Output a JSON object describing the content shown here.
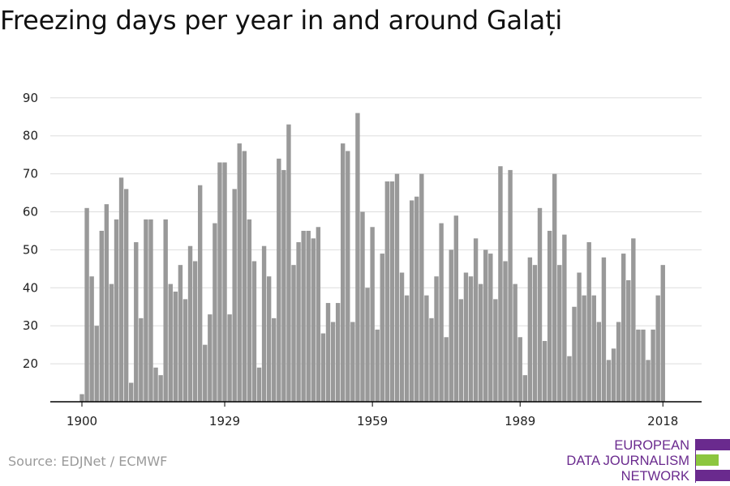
{
  "title": "Freezing days per year in and around Galați",
  "source": "Source: EDJNet / ECMWF",
  "logo": {
    "lines": [
      "EUROPEAN",
      "DATA JOURNALISM",
      "NETWORK"
    ],
    "bar_colors": [
      "#6a2a8e",
      "#8cc63f",
      "#6a2a8e"
    ]
  },
  "colors": {
    "bar": "#999999",
    "grid": "#dddddd",
    "axis": "#000000"
  },
  "chart_data": {
    "type": "bar",
    "title": "Freezing days per year in and around Galați",
    "xlabel": "",
    "ylabel": "",
    "ylim": [
      10,
      90
    ],
    "y_ticks": [
      20,
      30,
      40,
      50,
      60,
      70,
      80,
      90
    ],
    "x_ticks": [
      1900,
      1929,
      1959,
      1989,
      2018
    ],
    "grid": true,
    "x": [
      1900,
      1901,
      1902,
      1903,
      1904,
      1905,
      1906,
      1907,
      1908,
      1909,
      1910,
      1911,
      1912,
      1913,
      1914,
      1915,
      1916,
      1917,
      1918,
      1919,
      1920,
      1921,
      1922,
      1923,
      1924,
      1925,
      1926,
      1927,
      1928,
      1929,
      1930,
      1931,
      1932,
      1933,
      1934,
      1935,
      1936,
      1937,
      1938,
      1939,
      1940,
      1941,
      1942,
      1943,
      1944,
      1945,
      1946,
      1947,
      1948,
      1949,
      1950,
      1951,
      1952,
      1953,
      1954,
      1955,
      1956,
      1957,
      1958,
      1959,
      1960,
      1961,
      1962,
      1963,
      1964,
      1965,
      1966,
      1967,
      1968,
      1969,
      1970,
      1971,
      1972,
      1973,
      1974,
      1975,
      1976,
      1977,
      1978,
      1979,
      1980,
      1981,
      1982,
      1983,
      1984,
      1985,
      1986,
      1987,
      1988,
      1989,
      1990,
      1991,
      1992,
      1993,
      1994,
      1995,
      1996,
      1997,
      1998,
      1999,
      2000,
      2001,
      2002,
      2003,
      2004,
      2005,
      2006,
      2007,
      2008,
      2009,
      2010,
      2011,
      2012,
      2013,
      2014,
      2015,
      2016,
      2017,
      2018
    ],
    "values": [
      12,
      61,
      43,
      30,
      55,
      62,
      41,
      58,
      69,
      66,
      15,
      52,
      32,
      58,
      58,
      19,
      17,
      58,
      41,
      39,
      46,
      37,
      51,
      47,
      67,
      25,
      33,
      57,
      73,
      73,
      33,
      66,
      78,
      76,
      58,
      47,
      19,
      51,
      43,
      32,
      74,
      71,
      83,
      46,
      52,
      55,
      55,
      53,
      56,
      28,
      36,
      31,
      36,
      78,
      76,
      31,
      86,
      60,
      40,
      56,
      29,
      49,
      68,
      68,
      70,
      44,
      38,
      63,
      64,
      70,
      38,
      32,
      43,
      57,
      27,
      50,
      59,
      37,
      44,
      43,
      53,
      41,
      50,
      49,
      37,
      72,
      47,
      71,
      41,
      27,
      17,
      48,
      46,
      61,
      26,
      55,
      70,
      46,
      54,
      22,
      35,
      44,
      38,
      52,
      38,
      31,
      48,
      21,
      24,
      31,
      49,
      42,
      53,
      29,
      29,
      21,
      29,
      38,
      46
    ]
  }
}
